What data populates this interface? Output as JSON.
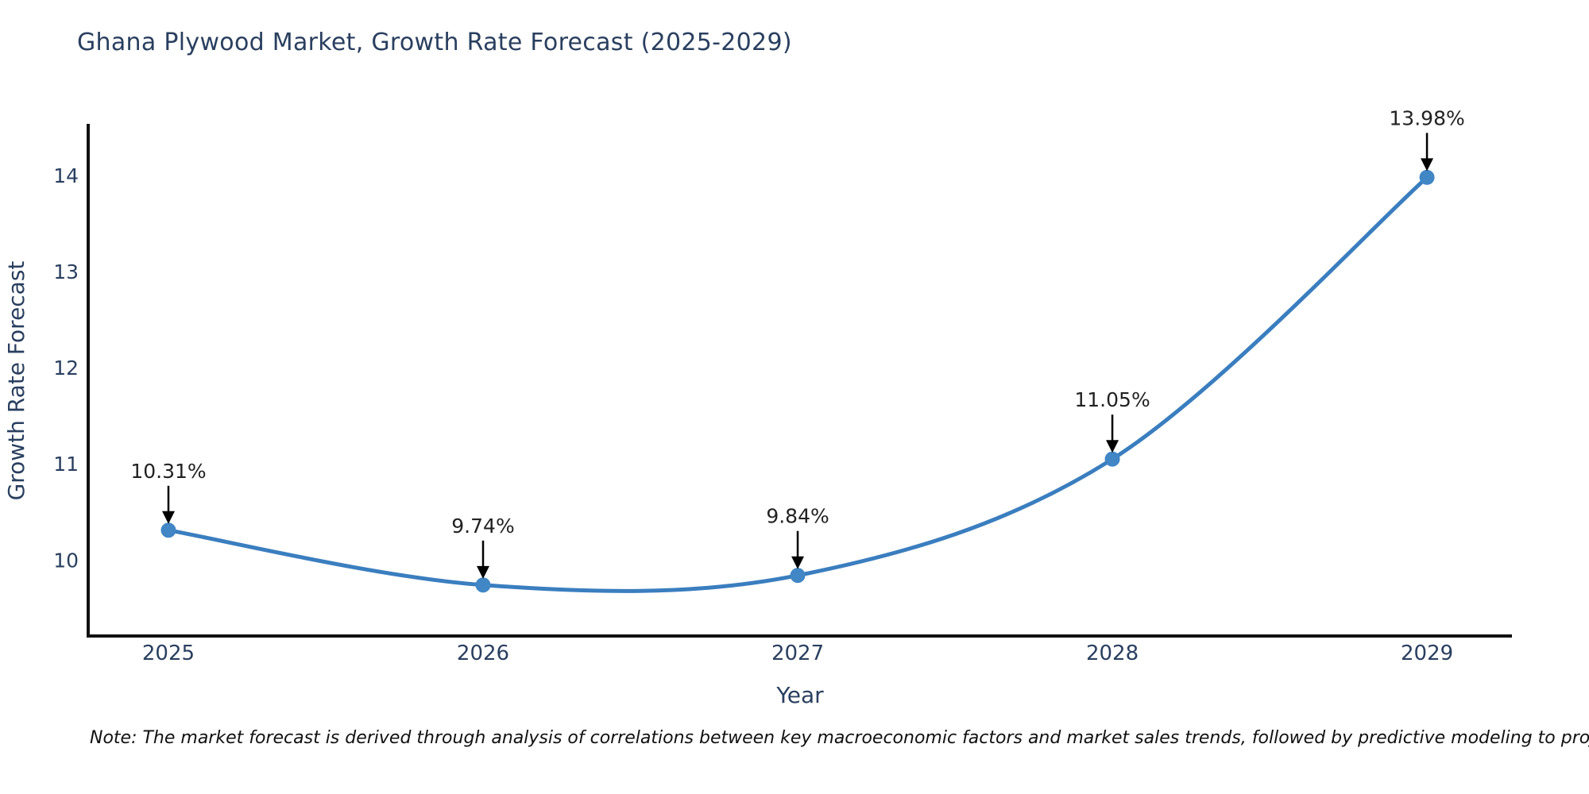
{
  "title": "Ghana Plywood Market, Growth Rate Forecast (2025-2029)",
  "footnote": "Note: The market forecast is derived through analysis of correlations between key macroeconomic factors and market sales trends, followed by predictive modeling to project future sales.",
  "chart_data": {
    "type": "line",
    "title": "Ghana Plywood Market, Growth Rate Forecast (2025-2029)",
    "x": [
      2025,
      2026,
      2027,
      2028,
      2029
    ],
    "values": [
      10.31,
      9.74,
      9.84,
      11.05,
      13.98
    ],
    "point_labels": [
      "10.31%",
      "9.74%",
      "9.84%",
      "11.05%",
      "13.98%"
    ],
    "xticklabels": [
      "2025",
      "2026",
      "2027",
      "2028",
      "2029"
    ],
    "yticks": [
      10,
      11,
      12,
      13,
      14
    ],
    "xlabel": "Year",
    "ylabel": "Growth Rate Forecast",
    "xlim": [
      2024.745,
      2029.27
    ],
    "ylim": [
      9.21,
      14.52
    ],
    "line_shape": "spline",
    "grid": false,
    "legend": "none",
    "colors": {
      "line": "#3a7ebf",
      "marker": "#4186c5",
      "axis": "#111111",
      "tick_text": "#2a3f5f",
      "axis_title_text": "#2a3f5f",
      "annotation_text": "#222222",
      "annotation_arrow": "#000000",
      "title_text": "#2a3f5f",
      "background": "#ffffff"
    }
  }
}
